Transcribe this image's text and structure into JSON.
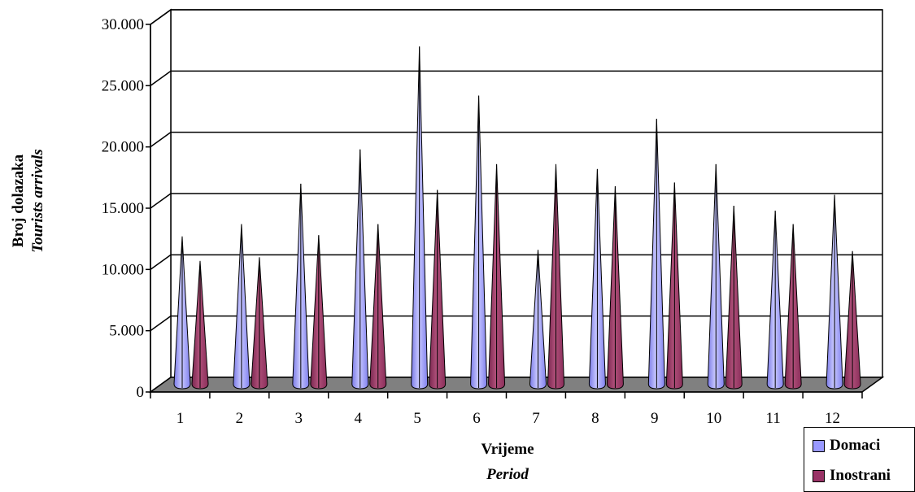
{
  "chart_data": {
    "type": "bar",
    "categories": [
      "1",
      "2",
      "3",
      "4",
      "5",
      "6",
      "7",
      "8",
      "9",
      "10",
      "11",
      "12"
    ],
    "series": [
      {
        "name": "Domaci",
        "color": "#9999ff",
        "values": [
          11500,
          12500,
          15800,
          18600,
          27000,
          23000,
          10400,
          17000,
          21100,
          17400,
          13600,
          14900
        ]
      },
      {
        "name": "Inostrani",
        "color": "#993366",
        "values": [
          9500,
          9800,
          11600,
          12500,
          15300,
          17400,
          17400,
          15600,
          15900,
          14000,
          12500,
          10300
        ]
      }
    ],
    "ylim": [
      0,
      30000
    ],
    "yticks": [
      "0",
      "5.000",
      "10.000",
      "15.000",
      "20.000",
      "25.000",
      "30.000"
    ],
    "ylabel": "Broj dolazaka",
    "ylabel_sub": "Tourists arrivals",
    "xlabel": "Vrijeme",
    "xlabel_sub": "Period",
    "grid": true,
    "legend_position": "bottom-right"
  }
}
